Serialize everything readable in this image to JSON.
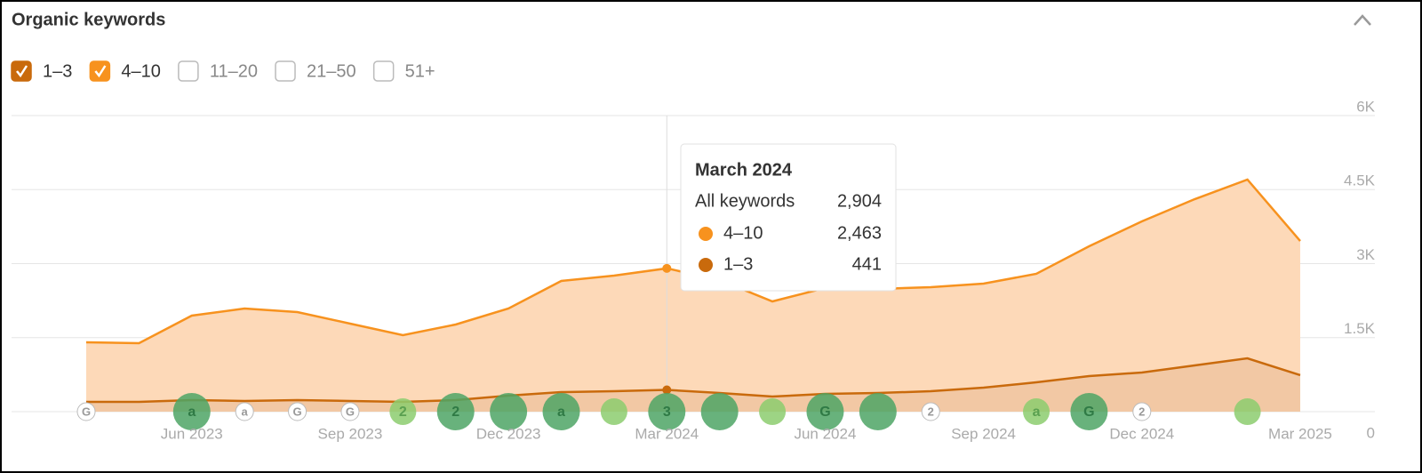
{
  "chart_data": {
    "type": "stacked_area",
    "title": "Organic keywords",
    "series": [
      {
        "name": "1–3",
        "color": "#c96a0c",
        "fill": "#f2c8a4",
        "checked": true,
        "values": [
          198,
          198,
          234,
          216,
          234,
          216,
          198,
          234,
          324,
          396,
          414,
          441,
          378,
          306,
          360,
          378,
          414,
          486,
          595,
          721,
          793,
          937,
          1081,
          739
        ]
      },
      {
        "name": "4–10",
        "color": "#f7921e",
        "fill": "#fdd9b8",
        "checked": true,
        "values": [
          1207,
          1189,
          1712,
          1874,
          1784,
          1568,
          1352,
          1532,
          1766,
          2253,
          2343,
          2463,
          2289,
          1928,
          2145,
          2108,
          2109,
          2109,
          2198,
          2630,
          3063,
          3369,
          3622,
          2720
        ]
      }
    ],
    "other_ranges": [
      "11–20",
      "21–50",
      "51+"
    ],
    "categories": [
      null,
      null,
      "Jun 2023",
      null,
      null,
      "Sep 2023",
      null,
      null,
      "Dec 2023",
      null,
      null,
      "Mar 2024",
      null,
      null,
      "Jun 2024",
      null,
      null,
      "Sep 2024",
      null,
      null,
      "Dec 2024",
      null,
      null,
      "Mar 2025"
    ],
    "ylim": [
      0,
      6000
    ],
    "yticks": [
      0,
      {
        "value": 1500,
        "label": "1.5K"
      },
      {
        "value": 3000,
        "label": "3K"
      },
      {
        "value": 4500,
        "label": "4.5K"
      },
      {
        "value": 6000,
        "label": "6K"
      }
    ],
    "grid": true,
    "hover_index": 11,
    "tooltip": {
      "title": "March 2024",
      "total_label": "All keywords",
      "total_value_label": "2,904",
      "rows": [
        {
          "label": "4–10",
          "value_label": "2,463"
        },
        {
          "label": "1–3",
          "value_label": "441"
        }
      ]
    },
    "annotations": [
      {
        "text": "G",
        "at": 0,
        "style": "outline"
      },
      {
        "text": "a",
        "at": 2,
        "style": "dark"
      },
      {
        "text": "a",
        "at": 3,
        "style": "outline"
      },
      {
        "text": "G",
        "at": 4,
        "style": "outline"
      },
      {
        "text": "G",
        "at": 5,
        "style": "outline"
      },
      {
        "text": "2",
        "at": 6,
        "style": "light"
      },
      {
        "text": "2",
        "at": 7,
        "style": "dark"
      },
      {
        "text": null,
        "at": 8,
        "style": "dark"
      },
      {
        "text": "a",
        "at": 9,
        "style": "dark"
      },
      {
        "text": null,
        "at": 10,
        "style": "light"
      },
      {
        "text": "3",
        "at": 11,
        "style": "dark"
      },
      {
        "text": null,
        "at": 12,
        "style": "dark"
      },
      {
        "text": null,
        "at": 13,
        "style": "light"
      },
      {
        "text": "G",
        "at": 14,
        "style": "dark"
      },
      {
        "text": null,
        "at": 15,
        "style": "dark"
      },
      {
        "text": "2",
        "at": 16,
        "style": "outline"
      },
      {
        "text": "a",
        "at": 18,
        "style": "light"
      },
      {
        "text": "G",
        "at": 19,
        "style": "dark"
      },
      {
        "text": "2",
        "at": 20,
        "style": "outline"
      },
      {
        "text": null,
        "at": 22,
        "style": "light"
      }
    ]
  }
}
